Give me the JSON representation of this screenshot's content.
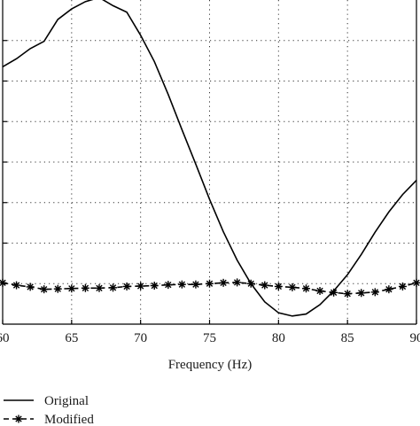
{
  "chart_data": {
    "type": "line",
    "xlabel": "Frequency (Hz)",
    "ylabel": "",
    "xlim": [
      60,
      90
    ],
    "ylim": [
      0,
      8
    ],
    "x_ticks": [
      60,
      65,
      70,
      75,
      80,
      85,
      90
    ],
    "x_tick_labels": [
      "60",
      "65",
      "70",
      "75",
      "80",
      "85",
      "90"
    ],
    "y_gridlines": [
      1,
      2,
      3,
      4,
      5,
      6,
      7
    ],
    "grid": true,
    "grid_style": "dotted",
    "legend_position": "bottom-left",
    "series": [
      {
        "name": "Original",
        "line": "solid",
        "marker": "none",
        "color": "#000000",
        "x": [
          60,
          61,
          62,
          63,
          64,
          65,
          66,
          67,
          68,
          69,
          70,
          71,
          72,
          73,
          74,
          75,
          76,
          77,
          78,
          79,
          80,
          81,
          82,
          83,
          84,
          85,
          86,
          87,
          88,
          89,
          90
        ],
        "y": [
          6.35,
          6.55,
          6.8,
          6.98,
          7.52,
          7.78,
          7.96,
          8.06,
          7.86,
          7.7,
          7.13,
          6.48,
          5.67,
          4.8,
          3.95,
          3.08,
          2.28,
          1.58,
          1.0,
          0.55,
          0.28,
          0.2,
          0.25,
          0.48,
          0.82,
          1.22,
          1.72,
          2.27,
          2.77,
          3.2,
          3.55
        ]
      },
      {
        "name": "Modified",
        "line": "dashed",
        "marker": "asterisk",
        "color": "#000000",
        "x": [
          60,
          61,
          62,
          63,
          64,
          65,
          66,
          67,
          68,
          69,
          70,
          71,
          72,
          73,
          74,
          75,
          76,
          77,
          78,
          79,
          80,
          81,
          82,
          83,
          84,
          85,
          86,
          87,
          88,
          89,
          90
        ],
        "y": [
          1.02,
          0.96,
          0.92,
          0.86,
          0.87,
          0.88,
          0.89,
          0.89,
          0.9,
          0.93,
          0.94,
          0.95,
          0.97,
          0.98,
          0.98,
          1.0,
          1.02,
          1.03,
          1.0,
          0.96,
          0.93,
          0.91,
          0.88,
          0.82,
          0.78,
          0.75,
          0.77,
          0.79,
          0.86,
          0.93,
          1.02
        ]
      }
    ]
  }
}
